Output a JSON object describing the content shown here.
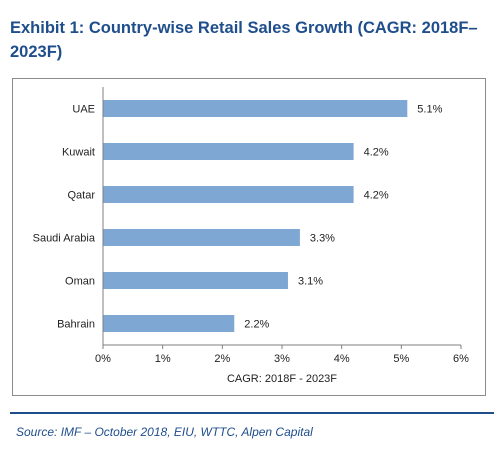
{
  "title": "Exhibit 1:  Country-wise Retail Sales Growth  (CAGR: 2018F–2023F)",
  "source": "Source:  IMF – October 2018, EIU, WTTC, Alpen Capital",
  "colors": {
    "bar": "#7ea7d3",
    "title": "#1f4e8c",
    "text": "#222222",
    "axis": "#7f7f7f"
  },
  "chart_data": {
    "type": "bar",
    "orientation": "horizontal",
    "categories": [
      "UAE",
      "Kuwait",
      "Qatar",
      "Saudi Arabia",
      "Oman",
      "Bahrain"
    ],
    "values": [
      5.1,
      4.2,
      4.2,
      3.3,
      3.1,
      2.2
    ],
    "value_labels": [
      "5.1%",
      "4.2%",
      "4.2%",
      "3.3%",
      "3.1%",
      "2.2%"
    ],
    "xlabel": "CAGR: 2018F - 2023F",
    "ylabel": "",
    "xlim": [
      0,
      6
    ],
    "xticks": [
      0,
      1,
      2,
      3,
      4,
      5,
      6
    ],
    "xtick_labels": [
      "0%",
      "1%",
      "2%",
      "3%",
      "4%",
      "5%",
      "6%"
    ],
    "grid": false,
    "legend": "none"
  }
}
